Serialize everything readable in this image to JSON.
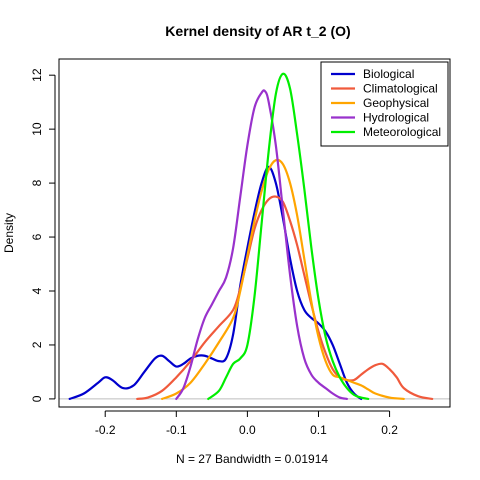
{
  "chart_data": {
    "type": "line",
    "title": "Kernel density of AR t_2 (O)",
    "xlabel": "N = 27   Bandwidth = 0.01914",
    "ylabel": "Density",
    "xlim": [
      -0.265,
      0.285
    ],
    "ylim": [
      -0.3,
      12.6
    ],
    "x_ticks": [
      -0.2,
      -0.1,
      0.0,
      0.1,
      0.2
    ],
    "x_tick_labels": [
      "-0.2",
      "-0.1",
      "0.0",
      "0.1",
      "0.2"
    ],
    "y_ticks": [
      0,
      2,
      4,
      6,
      8,
      10,
      12
    ],
    "y_tick_labels": [
      "0",
      "2",
      "4",
      "6",
      "8",
      "10",
      "12"
    ],
    "legend_position": "top-right",
    "baseline_color": "#bebebe",
    "series": [
      {
        "name": "Biological",
        "color": "#0000cd",
        "x": [
          -0.25,
          -0.23,
          -0.21,
          -0.2,
          -0.19,
          -0.175,
          -0.16,
          -0.145,
          -0.13,
          -0.12,
          -0.11,
          -0.1,
          -0.09,
          -0.08,
          -0.07,
          -0.06,
          -0.05,
          -0.04,
          -0.03,
          -0.02,
          -0.01,
          0.0,
          0.01,
          0.02,
          0.03,
          0.04,
          0.05,
          0.06,
          0.07,
          0.08,
          0.09,
          0.1,
          0.11,
          0.12,
          0.13,
          0.14,
          0.15,
          0.16
        ],
        "y": [
          0.0,
          0.2,
          0.6,
          0.8,
          0.7,
          0.4,
          0.5,
          1.0,
          1.5,
          1.6,
          1.4,
          1.2,
          1.3,
          1.5,
          1.6,
          1.6,
          1.5,
          1.4,
          1.5,
          2.4,
          4.2,
          5.6,
          6.9,
          8.0,
          8.6,
          8.0,
          6.7,
          5.2,
          4.0,
          3.3,
          3.0,
          2.8,
          2.5,
          2.0,
          1.3,
          0.6,
          0.2,
          0.0
        ]
      },
      {
        "name": "Climatological",
        "color": "#f05a3c",
        "x": [
          -0.155,
          -0.14,
          -0.12,
          -0.1,
          -0.08,
          -0.06,
          -0.04,
          -0.02,
          -0.01,
          0.0,
          0.01,
          0.02,
          0.03,
          0.04,
          0.05,
          0.06,
          0.07,
          0.08,
          0.09,
          0.1,
          0.11,
          0.12,
          0.13,
          0.14,
          0.15,
          0.16,
          0.17,
          0.18,
          0.19,
          0.2,
          0.21,
          0.22,
          0.24,
          0.26
        ],
        "y": [
          0.0,
          0.05,
          0.3,
          0.8,
          1.4,
          2.1,
          2.7,
          3.3,
          4.1,
          5.2,
          6.3,
          7.0,
          7.4,
          7.5,
          7.3,
          6.6,
          5.7,
          4.6,
          3.5,
          2.5,
          1.7,
          1.1,
          0.8,
          0.7,
          0.7,
          0.9,
          1.1,
          1.25,
          1.3,
          1.1,
          0.8,
          0.4,
          0.1,
          0.0
        ]
      },
      {
        "name": "Geophysical",
        "color": "#ffa500",
        "x": [
          -0.12,
          -0.1,
          -0.08,
          -0.06,
          -0.04,
          -0.02,
          -0.01,
          0.0,
          0.01,
          0.02,
          0.03,
          0.04,
          0.05,
          0.06,
          0.07,
          0.08,
          0.09,
          0.1,
          0.11,
          0.12,
          0.13,
          0.14,
          0.15,
          0.16,
          0.17,
          0.18,
          0.2,
          0.22
        ],
        "y": [
          0.0,
          0.2,
          0.6,
          1.3,
          2.1,
          3.0,
          4.0,
          5.3,
          6.6,
          7.7,
          8.5,
          8.85,
          8.7,
          8.0,
          6.8,
          5.2,
          3.6,
          2.3,
          1.4,
          0.9,
          0.8,
          0.7,
          0.6,
          0.5,
          0.35,
          0.2,
          0.05,
          0.0
        ]
      },
      {
        "name": "Hydrological",
        "color": "#9932cc",
        "x": [
          -0.1,
          -0.09,
          -0.08,
          -0.07,
          -0.06,
          -0.05,
          -0.04,
          -0.03,
          -0.02,
          -0.01,
          0.0,
          0.01,
          0.02,
          0.025,
          0.03,
          0.04,
          0.05,
          0.06,
          0.07,
          0.08,
          0.09,
          0.1,
          0.11,
          0.12,
          0.13,
          0.14
        ],
        "y": [
          0.0,
          0.4,
          1.2,
          2.2,
          3.0,
          3.5,
          4.0,
          4.5,
          5.6,
          7.5,
          9.4,
          10.8,
          11.35,
          11.4,
          11.0,
          9.4,
          7.0,
          4.6,
          2.7,
          1.5,
          0.9,
          0.6,
          0.4,
          0.2,
          0.05,
          0.0
        ]
      },
      {
        "name": "Meteorological",
        "color": "#00ee00",
        "x": [
          -0.055,
          -0.04,
          -0.03,
          -0.02,
          -0.01,
          0.0,
          0.01,
          0.02,
          0.03,
          0.04,
          0.05,
          0.06,
          0.07,
          0.08,
          0.09,
          0.1,
          0.11,
          0.12,
          0.13,
          0.14,
          0.15,
          0.16,
          0.17
        ],
        "y": [
          0.0,
          0.3,
          0.8,
          1.3,
          1.5,
          2.0,
          3.8,
          6.5,
          9.2,
          11.3,
          12.05,
          11.5,
          9.8,
          7.8,
          5.6,
          3.7,
          2.3,
          1.4,
          0.8,
          0.4,
          0.15,
          0.05,
          0.0
        ]
      }
    ]
  }
}
